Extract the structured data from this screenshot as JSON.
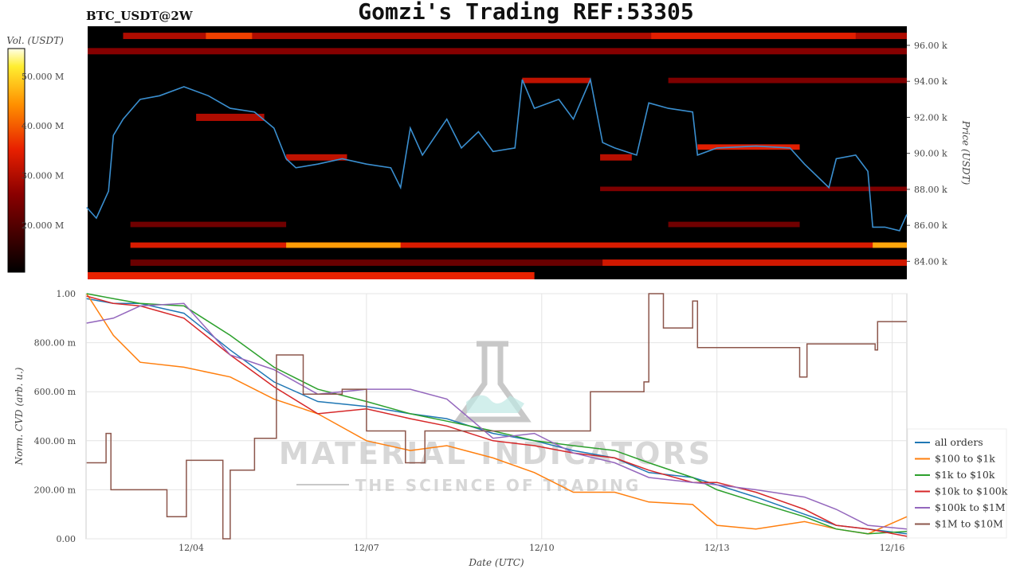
{
  "title": "Gomzi's Trading REF:53305",
  "symbol": "BTC_USDT@2W",
  "watermark": {
    "brand": "MATERIAL INDICATORS",
    "tagline": "THE SCIENCE OF TRADING"
  },
  "chart_data": [
    {
      "type": "heatmap",
      "title": "",
      "xlabel": "",
      "ylabel": "Price (USDT)",
      "ylim": [
        83.0,
        97.06
      ],
      "yticks": [
        84,
        86,
        88,
        90,
        92,
        94,
        96
      ],
      "ytick_labels": [
        "84.00 k",
        "86.00 k",
        "88.00 k",
        "90.00 k",
        "92.00 k",
        "94.00 k",
        "96.00 k"
      ],
      "colorbar": {
        "label": "Vol. (USDT)",
        "clim": [
          10.5,
          55.6
        ],
        "ticks": [
          20,
          30,
          40,
          50
        ],
        "tick_labels": [
          "20.000 M",
          "30.000 M",
          "40.000 M",
          "50.000 M"
        ],
        "colormap": "afmhot"
      },
      "bands": [
        {
          "price": [
            96.35,
            96.7
          ],
          "start": "12/02 20:00",
          "end": "12/16 06:00",
          "vol": 24
        },
        {
          "price": [
            96.35,
            96.7
          ],
          "start": "12/04 06:00",
          "end": "12/05 01:00",
          "vol": 34
        },
        {
          "price": [
            96.35,
            96.7
          ],
          "start": "12/11 21:00",
          "end": "12/15 09:00",
          "vol": 30
        },
        {
          "price": [
            95.5,
            95.85
          ],
          "start": "12/02 05:00",
          "end": "12/16 06:00",
          "vol": 19
        },
        {
          "price": [
            93.9,
            94.2
          ],
          "start": "12/09 16:00",
          "end": "12/10 20:00",
          "vol": 26
        },
        {
          "price": [
            93.9,
            94.2
          ],
          "start": "12/12 04:00",
          "end": "12/16 06:00",
          "vol": 18
        },
        {
          "price": [
            91.8,
            92.2
          ],
          "start": "12/04 02:00",
          "end": "12/05 06:00",
          "vol": 24
        },
        {
          "price": [
            90.2,
            90.5
          ],
          "start": "12/12 16:00",
          "end": "12/14 10:00",
          "vol": 30
        },
        {
          "price": [
            89.6,
            89.95
          ],
          "start": "12/05 15:00",
          "end": "12/06 16:00",
          "vol": 26
        },
        {
          "price": [
            89.6,
            89.95
          ],
          "start": "12/11 00:00",
          "end": "12/11 13:00",
          "vol": 25
        },
        {
          "price": [
            87.9,
            88.15
          ],
          "start": "12/11 00:00",
          "end": "12/16 06:00",
          "vol": 18
        },
        {
          "price": [
            85.9,
            86.2
          ],
          "start": "12/02 23:00",
          "end": "12/05 15:00",
          "vol": 16
        },
        {
          "price": [
            85.9,
            86.2
          ],
          "start": "12/12 04:00",
          "end": "12/14 10:00",
          "vol": 16
        },
        {
          "price": [
            84.75,
            85.05
          ],
          "start": "12/02 23:00",
          "end": "12/16 06:00",
          "vol": 29
        },
        {
          "price": [
            84.75,
            85.05
          ],
          "start": "12/05 15:00",
          "end": "12/07 14:00",
          "vol": 43
        },
        {
          "price": [
            84.75,
            85.05
          ],
          "start": "12/15 16:00",
          "end": "12/16 06:00",
          "vol": 44
        },
        {
          "price": [
            83.75,
            84.1
          ],
          "start": "12/02 23:00",
          "end": "12/16 06:00",
          "vol": 15
        },
        {
          "price": [
            83.75,
            84.1
          ],
          "start": "12/11 01:00",
          "end": "12/16 06:00",
          "vol": 28
        },
        {
          "price": [
            83.0,
            83.4
          ],
          "start": "12/02 05:00",
          "end": "12/09 21:00",
          "vol": 31
        }
      ],
      "price_series": {
        "x": [
          "12/02 05:00",
          "12/02 09:00",
          "12/02 14:00",
          "12/02 16:00",
          "12/02 20:00",
          "12/03 03:00",
          "12/03 11:00",
          "12/03 21:00",
          "12/04 07:00",
          "12/04 16:00",
          "12/05 02:00",
          "12/05 10:00",
          "12/05 15:00",
          "12/05 19:00",
          "12/06 04:00",
          "12/06 14:00",
          "12/07 00:00",
          "12/07 10:00",
          "12/07 14:00",
          "12/07 18:00",
          "12/07 23:00",
          "12/08 09:00",
          "12/08 15:00",
          "12/08 22:00",
          "12/09 04:00",
          "12/09 13:00",
          "12/09 16:00",
          "12/09 21:00",
          "12/10 07:00",
          "12/10 13:00",
          "12/10 20:00",
          "12/11 01:00",
          "12/11 06:00",
          "12/11 15:00",
          "12/11 20:00",
          "12/12 04:00",
          "12/12 14:00",
          "12/12 16:00",
          "12/13 00:00",
          "12/13 16:00",
          "12/14 06:00",
          "12/14 12:00",
          "12/14 22:00",
          "12/15 01:00",
          "12/15 09:00",
          "12/15 14:00",
          "12/15 16:00",
          "12/15 21:00",
          "12/16 03:00",
          "12/16 06:00"
        ],
        "y": [
          87.0,
          86.4,
          87.9,
          91.0,
          91.9,
          93.0,
          93.2,
          93.7,
          93.2,
          92.5,
          92.3,
          91.4,
          89.7,
          89.2,
          89.4,
          89.7,
          89.4,
          89.2,
          88.1,
          91.4,
          89.9,
          91.9,
          90.3,
          91.2,
          90.1,
          90.3,
          94.1,
          92.5,
          93.0,
          91.9,
          94.1,
          90.6,
          90.3,
          89.9,
          92.8,
          92.5,
          92.3,
          89.9,
          90.3,
          90.4,
          90.3,
          89.4,
          88.1,
          89.7,
          89.9,
          89.0,
          85.9,
          85.9,
          85.7,
          86.6
        ],
        "color": "#3a8fd0"
      }
    },
    {
      "type": "line",
      "title": "",
      "xlabel": "Date (UTC)",
      "ylabel": "Norm. CVD (arb. u.)",
      "ylim": [
        0,
        1
      ],
      "grid": true,
      "legend": "right",
      "xticks": [
        "12/04",
        "12/07",
        "12/10",
        "12/13",
        "12/16"
      ],
      "yticks": [
        0,
        0.2,
        0.4,
        0.6,
        0.8,
        1.0
      ],
      "ytick_labels": [
        "0.00",
        "200.00 m",
        "400.00 m",
        "600.00 m",
        "800.00 m",
        "1.00"
      ],
      "x": [
        "12/02 05:00",
        "12/02 16:00",
        "12/03 03:00",
        "12/03 21:00",
        "12/04 16:00",
        "12/05 10:00",
        "12/06 04:00",
        "12/07 00:00",
        "12/07 18:00",
        "12/08 09:00",
        "12/09 04:00",
        "12/09 21:00",
        "12/10 13:00",
        "12/11 06:00",
        "12/11 20:00",
        "12/12 14:00",
        "12/13 00:00",
        "12/13 16:00",
        "12/14 12:00",
        "12/15 01:00",
        "12/15 14:00",
        "12/16 06:00"
      ],
      "series": [
        {
          "name": "all orders",
          "color": "#1f77b4",
          "values": [
            0.98,
            0.96,
            0.96,
            0.92,
            0.77,
            0.64,
            0.56,
            0.54,
            0.51,
            0.49,
            0.43,
            0.4,
            0.36,
            0.33,
            0.27,
            0.25,
            0.22,
            0.17,
            0.1,
            0.055,
            0.04,
            0.02
          ]
        },
        {
          "name": "$100 to $1k",
          "color": "#ff7f0e",
          "values": [
            1.0,
            0.83,
            0.72,
            0.7,
            0.66,
            0.57,
            0.51,
            0.4,
            0.36,
            0.38,
            0.33,
            0.27,
            0.19,
            0.19,
            0.15,
            0.14,
            0.055,
            0.04,
            0.07,
            0.04,
            0.02,
            0.09
          ]
        },
        {
          "name": "$1k to $10k",
          "color": "#2ca02c",
          "values": [
            1.0,
            0.98,
            0.96,
            0.95,
            0.83,
            0.7,
            0.61,
            0.56,
            0.51,
            0.48,
            0.44,
            0.4,
            0.38,
            0.36,
            0.31,
            0.25,
            0.2,
            0.15,
            0.09,
            0.04,
            0.02,
            0.03
          ]
        },
        {
          "name": "$10k to $100k",
          "color": "#d62728",
          "values": [
            0.99,
            0.96,
            0.95,
            0.9,
            0.75,
            0.62,
            0.51,
            0.53,
            0.49,
            0.46,
            0.4,
            0.38,
            0.35,
            0.33,
            0.28,
            0.23,
            0.23,
            0.19,
            0.12,
            0.055,
            0.04,
            0.01
          ]
        },
        {
          "name": "$100k to $1M",
          "color": "#9467bd",
          "values": [
            0.88,
            0.9,
            0.95,
            0.96,
            0.75,
            0.69,
            0.59,
            0.61,
            0.61,
            0.57,
            0.41,
            0.43,
            0.35,
            0.31,
            0.25,
            0.23,
            0.22,
            0.2,
            0.17,
            0.12,
            0.055,
            0.04
          ]
        },
        {
          "name": "$1M to $10M",
          "color": "#8c564b",
          "step": true,
          "x": [
            "12/02 05:00",
            "12/02 12:00",
            "12/02 13:00",
            "12/02 15:00",
            "12/03 14:00",
            "12/03 22:00",
            "12/04 13:00",
            "12/04 16:00",
            "12/05 02:00",
            "12/05 11:00",
            "12/05 22:00",
            "12/06 14:00",
            "12/07 00:00",
            "12/07 16:00",
            "12/08 00:00",
            "12/10 20:00",
            "12/11 18:00",
            "12/11 20:00",
            "12/12 02:00",
            "12/12 14:00",
            "12/12 16:00",
            "12/14 10:00",
            "12/14 13:00",
            "12/15 17:00",
            "12/15 18:00",
            "12/16 06:00"
          ],
          "values": [
            0.31,
            0.31,
            0.43,
            0.2,
            0.09,
            0.32,
            0.0,
            0.28,
            0.41,
            0.75,
            0.59,
            0.61,
            0.44,
            0.31,
            0.44,
            0.6,
            0.64,
            1.0,
            0.86,
            0.97,
            0.78,
            0.66,
            0.795,
            0.77,
            0.886,
            0.886
          ]
        }
      ]
    }
  ]
}
